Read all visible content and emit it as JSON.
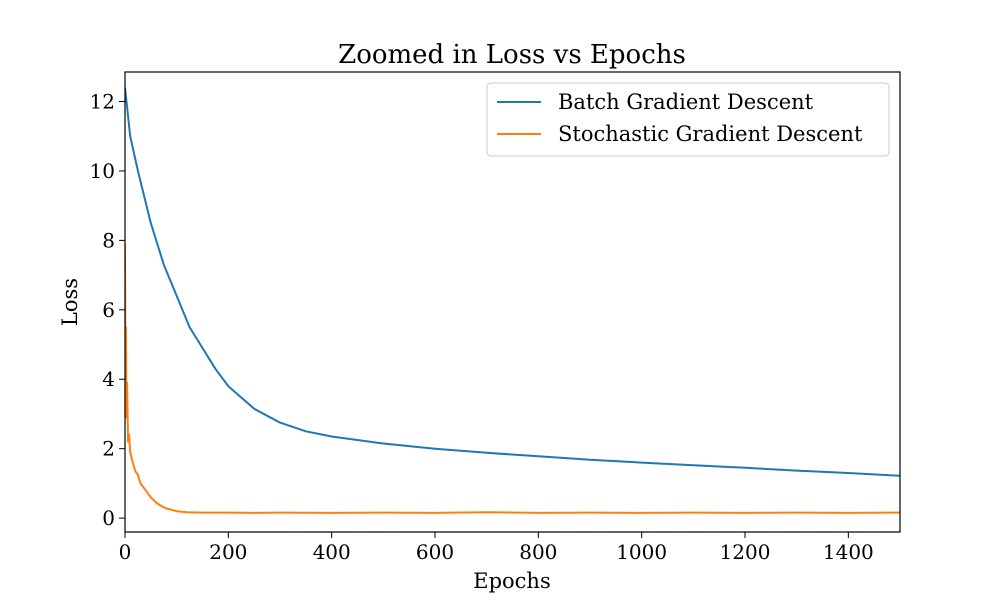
{
  "chart_data": {
    "type": "line",
    "title": "Zoomed in Loss vs Epochs",
    "xlabel": "Epochs",
    "ylabel": "Loss",
    "xlim": [
      0,
      1500
    ],
    "ylim": [
      -0.4,
      12.85
    ],
    "xticks": [
      0,
      200,
      400,
      600,
      800,
      1000,
      1200,
      1400
    ],
    "yticks": [
      0,
      2,
      4,
      6,
      8,
      10,
      12
    ],
    "grid": false,
    "legend_position": "top-right",
    "series": [
      {
        "name": "Batch Gradient Descent",
        "color": "#1f77b4",
        "x": [
          0,
          10,
          25,
          50,
          75,
          100,
          125,
          150,
          175,
          200,
          250,
          300,
          350,
          400,
          500,
          600,
          700,
          800,
          900,
          1000,
          1100,
          1200,
          1300,
          1400,
          1500
        ],
        "values": [
          12.4,
          11.0,
          10.0,
          8.5,
          7.3,
          6.4,
          5.5,
          4.9,
          4.3,
          3.8,
          3.15,
          2.75,
          2.5,
          2.35,
          2.15,
          2.0,
          1.88,
          1.78,
          1.68,
          1.6,
          1.52,
          1.45,
          1.37,
          1.3,
          1.22
        ]
      },
      {
        "name": "Stochastic Gradient Descent",
        "color": "#ff7f0e",
        "x": [
          0,
          1,
          2,
          3,
          4,
          5,
          6,
          8,
          10,
          15,
          20,
          25,
          30,
          40,
          50,
          60,
          70,
          80,
          100,
          120,
          150,
          200,
          250,
          300,
          400,
          500,
          600,
          700,
          800,
          900,
          1000,
          1100,
          1200,
          1300,
          1400,
          1500
        ],
        "values": [
          7.9,
          3.1,
          5.5,
          2.9,
          3.9,
          3.0,
          2.2,
          2.4,
          1.9,
          1.6,
          1.35,
          1.25,
          1.0,
          0.8,
          0.6,
          0.45,
          0.35,
          0.28,
          0.2,
          0.17,
          0.16,
          0.16,
          0.15,
          0.16,
          0.15,
          0.16,
          0.15,
          0.17,
          0.15,
          0.16,
          0.15,
          0.16,
          0.15,
          0.16,
          0.15,
          0.16
        ]
      }
    ]
  }
}
